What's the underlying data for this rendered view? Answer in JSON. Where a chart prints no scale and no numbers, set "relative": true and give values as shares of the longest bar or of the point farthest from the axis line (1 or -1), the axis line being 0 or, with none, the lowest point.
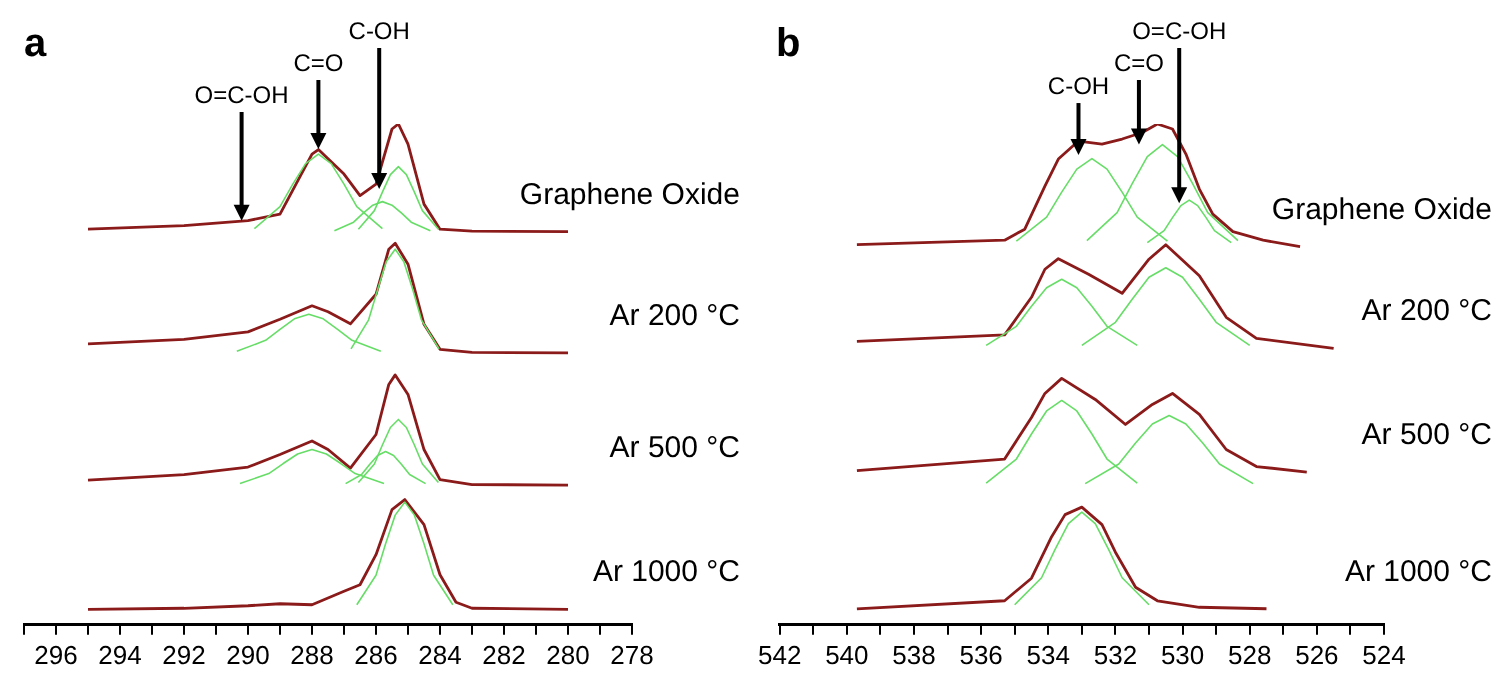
{
  "chart_data": [
    {
      "type": "line",
      "title": "a",
      "relative": true,
      "tick_labels": "x",
      "xlim": [
        297,
        278
      ],
      "xticks": [
        {
          "value": 297,
          "label": null
        },
        296,
        {
          "value": 295,
          "label": null
        },
        294,
        {
          "value": 293,
          "label": null
        },
        292,
        {
          "value": 291,
          "label": null
        },
        290,
        {
          "value": 289,
          "label": null
        },
        288,
        {
          "value": 287,
          "label": null
        },
        286,
        {
          "value": 285,
          "label": null
        },
        284,
        {
          "value": 283,
          "label": null
        },
        282,
        {
          "value": 281,
          "label": null
        },
        280,
        {
          "value": 279,
          "label": null
        },
        278
      ],
      "annotations": [
        {
          "text": "O=C-OH",
          "x": 290.2,
          "y": 0.807
        },
        {
          "text": "C=O",
          "x": 287.8,
          "y": 0.95
        },
        {
          "text": "C-OH",
          "x": 285.9,
          "y": 0.87
        }
      ],
      "series": [
        {
          "name": "Graphene Oxide",
          "color": "#8b1a1a",
          "x": [
            295,
            292,
            290,
            289,
            288.5,
            288,
            287.8,
            287,
            286.5,
            286,
            285.5,
            285.3,
            285,
            284.5,
            284,
            283,
            280
          ],
          "values": [
            0.79,
            0.797,
            0.807,
            0.82,
            0.88,
            0.94,
            0.949,
            0.9,
            0.857,
            0.88,
            0.99,
            1.0,
            0.96,
            0.84,
            0.79,
            0.786,
            0.785
          ]
        },
        {
          "color": "#66dd66",
          "x": [
            289.8,
            289,
            288.6,
            288.2,
            287.8,
            287.4,
            287,
            286.6,
            285.8
          ],
          "values": [
            0.791,
            0.835,
            0.88,
            0.921,
            0.94,
            0.921,
            0.88,
            0.835,
            0.791
          ]
        },
        {
          "color": "#66dd66",
          "x": [
            286.55,
            286.05,
            285.8,
            285.55,
            285.3,
            285.05,
            284.8,
            284.55,
            284.05
          ],
          "values": [
            0.79,
            0.827,
            0.864,
            0.899,
            0.915,
            0.899,
            0.864,
            0.827,
            0.79
          ]
        },
        {
          "color": "#66dd66",
          "x": [
            287.3,
            286.7,
            286.4,
            286.1,
            285.8,
            285.5,
            285.2,
            284.9,
            284.3
          ],
          "values": [
            0.787,
            0.804,
            0.822,
            0.838,
            0.845,
            0.838,
            0.822,
            0.804,
            0.787
          ]
        },
        {
          "name": "Ar 200 °C",
          "color": "#8b1a1a",
          "x": [
            295,
            292,
            290,
            289,
            288,
            287.5,
            286.8,
            286,
            285.6,
            285.4,
            285,
            284.5,
            284,
            283,
            280
          ],
          "values": [
            0.561,
            0.57,
            0.585,
            0.61,
            0.637,
            0.625,
            0.601,
            0.66,
            0.75,
            0.762,
            0.72,
            0.6,
            0.55,
            0.544,
            0.543
          ]
        },
        {
          "color": "#66dd66",
          "x": [
            290.35,
            289.45,
            289,
            288.55,
            288.1,
            287.65,
            287.2,
            286.75,
            285.85
          ],
          "values": [
            0.546,
            0.568,
            0.59,
            0.611,
            0.62,
            0.611,
            0.59,
            0.568,
            0.546
          ]
        },
        {
          "color": "#66dd66",
          "x": [
            286.78,
            286.23,
            285.95,
            285.68,
            285.4,
            285.13,
            284.85,
            284.58,
            284.03
          ],
          "values": [
            0.551,
            0.609,
            0.669,
            0.725,
            0.75,
            0.725,
            0.669,
            0.609,
            0.551
          ]
        },
        {
          "name": "Ar 500 °C",
          "color": "#8b1a1a",
          "x": [
            295,
            292,
            290,
            289,
            288,
            287.5,
            286.8,
            286,
            285.6,
            285.4,
            285,
            284.5,
            284,
            283,
            280
          ],
          "values": [
            0.289,
            0.3,
            0.315,
            0.34,
            0.367,
            0.35,
            0.313,
            0.38,
            0.48,
            0.499,
            0.46,
            0.35,
            0.29,
            0.28,
            0.279
          ]
        },
        {
          "color": "#66dd66",
          "x": [
            290.25,
            289.35,
            288.9,
            288.45,
            288,
            287.55,
            287.1,
            286.65,
            285.75
          ],
          "values": [
            0.282,
            0.302,
            0.322,
            0.341,
            0.35,
            0.341,
            0.322,
            0.302,
            0.282
          ]
        },
        {
          "color": "#66dd66",
          "x": [
            286.95,
            286.45,
            286.2,
            285.95,
            285.7,
            285.45,
            285.2,
            284.95,
            284.45
          ],
          "values": [
            0.282,
            0.3,
            0.32,
            0.338,
            0.346,
            0.338,
            0.32,
            0.3,
            0.282
          ]
        },
        {
          "color": "#66dd66",
          "x": [
            286.55,
            286.05,
            285.8,
            285.55,
            285.3,
            285.05,
            284.8,
            284.55,
            284.05
          ],
          "values": [
            0.284,
            0.321,
            0.359,
            0.394,
            0.41,
            0.394,
            0.359,
            0.321,
            0.284
          ]
        },
        {
          "name": "Ar 1000 °C",
          "color": "#8b1a1a",
          "x": [
            295,
            292,
            290,
            289,
            288,
            287,
            286.5,
            286,
            285.5,
            285.1,
            284.5,
            284,
            283.5,
            283,
            280
          ],
          "values": [
            0.031,
            0.033,
            0.038,
            0.042,
            0.04,
            0.067,
            0.08,
            0.14,
            0.23,
            0.25,
            0.2,
            0.1,
            0.045,
            0.033,
            0.031
          ]
        },
        {
          "color": "#66dd66",
          "x": [
            286.6,
            286,
            285.7,
            285.4,
            285.1,
            284.8,
            284.5,
            284.2,
            283.6
          ],
          "values": [
            0.04,
            0.099,
            0.162,
            0.219,
            0.245,
            0.219,
            0.162,
            0.099,
            0.04
          ]
        }
      ]
    },
    {
      "type": "line",
      "title": "b",
      "relative": true,
      "tick_labels": "x",
      "xlim": [
        542,
        524
      ],
      "xticks": [
        542,
        {
          "value": 541,
          "label": null
        },
        540,
        {
          "value": 539,
          "label": null
        },
        538,
        {
          "value": 537,
          "label": null
        },
        536,
        {
          "value": 535,
          "label": null
        },
        534,
        {
          "value": 533,
          "label": null
        },
        532,
        {
          "value": 531,
          "label": null
        },
        530,
        {
          "value": 529,
          "label": null
        },
        528,
        {
          "value": 527,
          "label": null
        },
        526,
        {
          "value": 525,
          "label": null
        },
        524
      ],
      "annotations": [
        {
          "text": "C-OH",
          "x": 533.1,
          "y": 0.938
        },
        {
          "text": "C=O",
          "x": 531.3,
          "y": 0.959
        },
        {
          "text": "O=C-OH",
          "x": 530.1,
          "y": 0.842
        }
      ],
      "series": [
        {
          "name": "Graphene Oxide",
          "color": "#8b1a1a",
          "x": [
            539.7,
            535.3,
            534.7,
            534.1,
            533.7,
            533.1,
            532.4,
            531.8,
            531.2,
            530.75,
            530.3,
            529.9,
            529.5,
            529.1,
            528.5,
            527.6,
            526.5
          ],
          "values": [
            0.759,
            0.768,
            0.79,
            0.876,
            0.93,
            0.966,
            0.96,
            0.97,
            0.983,
            1.0,
            0.99,
            0.94,
            0.87,
            0.82,
            0.785,
            0.768,
            0.755
          ]
        },
        {
          "color": "#66dd66",
          "x": [
            534.95,
            534.05,
            533.6,
            533.15,
            532.7,
            532.25,
            531.8,
            531.35,
            530.45
          ],
          "values": [
            0.766,
            0.814,
            0.864,
            0.91,
            0.931,
            0.91,
            0.864,
            0.814,
            0.766
          ]
        },
        {
          "color": "#66dd66",
          "x": [
            532.85,
            531.95,
            531.5,
            531.05,
            530.6,
            530.15,
            529.7,
            529.25,
            528.35
          ],
          "values": [
            0.767,
            0.823,
            0.881,
            0.935,
            0.959,
            0.935,
            0.881,
            0.823,
            0.767
          ]
        },
        {
          "color": "#66dd66",
          "x": [
            531.05,
            530.55,
            530.3,
            530.05,
            529.8,
            529.55,
            529.3,
            529.05,
            528.55
          ],
          "values": [
            0.763,
            0.787,
            0.813,
            0.837,
            0.848,
            0.837,
            0.813,
            0.787,
            0.763
          ]
        },
        {
          "name": "Ar 200 °C",
          "color": "#8b1a1a",
          "x": [
            539.7,
            535.3,
            534.5,
            534.1,
            533.7,
            532.8,
            531.8,
            531,
            530.5,
            529.5,
            528.7,
            527.8,
            525.5
          ],
          "values": [
            0.566,
            0.579,
            0.654,
            0.71,
            0.731,
            0.7,
            0.662,
            0.73,
            0.759,
            0.697,
            0.614,
            0.572,
            0.552
          ]
        },
        {
          "color": "#66dd66",
          "x": [
            535.85,
            534.95,
            534.5,
            534.05,
            533.6,
            533.15,
            532.7,
            532.25,
            531.35
          ],
          "values": [
            0.558,
            0.596,
            0.636,
            0.673,
            0.69,
            0.673,
            0.636,
            0.596,
            0.558
          ]
        },
        {
          "color": "#66dd66",
          "x": [
            533,
            532,
            531.5,
            531,
            530.5,
            530,
            529.5,
            529,
            528
          ],
          "values": [
            0.558,
            0.604,
            0.65,
            0.694,
            0.713,
            0.694,
            0.65,
            0.604,
            0.558
          ]
        },
        {
          "name": "Ar 500 °C",
          "color": "#8b1a1a",
          "x": [
            539.7,
            535.3,
            534.5,
            534.1,
            533.6,
            532.6,
            531.7,
            530.9,
            530.3,
            529.5,
            528.7,
            527.8,
            526.3
          ],
          "values": [
            0.308,
            0.331,
            0.414,
            0.462,
            0.492,
            0.45,
            0.4,
            0.44,
            0.462,
            0.42,
            0.35,
            0.316,
            0.305
          ]
        },
        {
          "color": "#66dd66",
          "x": [
            535.85,
            534.95,
            534.5,
            534.05,
            533.6,
            533.15,
            532.7,
            532.25,
            531.35
          ],
          "values": [
            0.283,
            0.331,
            0.381,
            0.427,
            0.448,
            0.427,
            0.381,
            0.331,
            0.283
          ]
        },
        {
          "color": "#66dd66",
          "x": [
            532.9,
            531.9,
            531.4,
            530.9,
            530.4,
            529.9,
            529.4,
            528.9,
            527.9
          ],
          "values": [
            0.282,
            0.321,
            0.363,
            0.401,
            0.418,
            0.401,
            0.363,
            0.321,
            0.282
          ]
        },
        {
          "name": "Ar 1000 °C",
          "color": "#8b1a1a",
          "x": [
            539.7,
            535.3,
            534.5,
            533.9,
            533.5,
            533,
            532.4,
            532,
            531.4,
            530.75,
            529.5,
            527.5
          ],
          "values": [
            0.032,
            0.048,
            0.093,
            0.176,
            0.22,
            0.235,
            0.2,
            0.145,
            0.075,
            0.048,
            0.035,
            0.032
          ]
        },
        {
          "color": "#66dd66",
          "x": [
            535,
            534.2,
            533.8,
            533.4,
            533,
            532.6,
            532.2,
            531.8,
            531
          ],
          "values": [
            0.04,
            0.094,
            0.15,
            0.202,
            0.225,
            0.202,
            0.15,
            0.094,
            0.04
          ]
        }
      ]
    }
  ]
}
